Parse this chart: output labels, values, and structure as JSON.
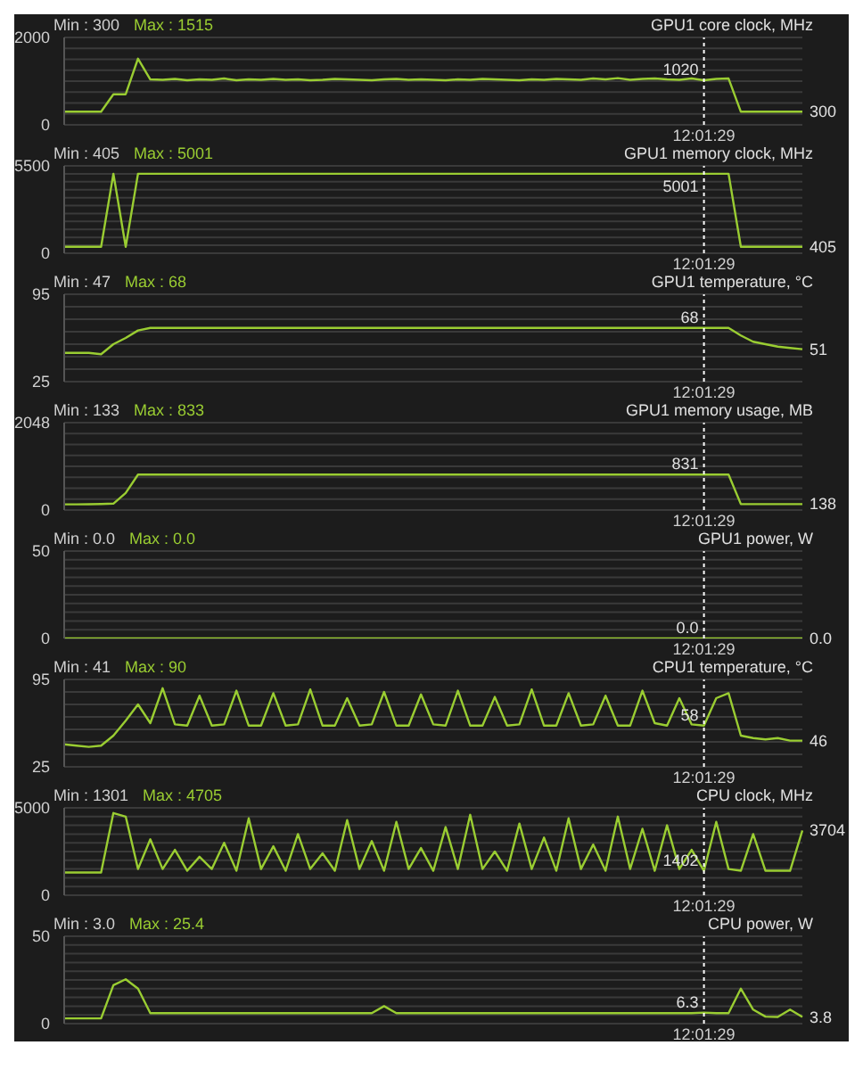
{
  "chart_data": [
    {
      "type": "line",
      "title": "GPU1 core clock, MHz",
      "categories": [
        null,
        null,
        null,
        null,
        null,
        null,
        null,
        null,
        null,
        null,
        null,
        null,
        null,
        null,
        null,
        null,
        null,
        null,
        null,
        null,
        null,
        null,
        null,
        null,
        null,
        null,
        null,
        null,
        null,
        null,
        null,
        null,
        null,
        null,
        null,
        null,
        null,
        null,
        null,
        null,
        null,
        null,
        null,
        null,
        null,
        null,
        null,
        null,
        null,
        null,
        null,
        null,
        null,
        null,
        null,
        null,
        null,
        null,
        null,
        null,
        null
      ],
      "series": [
        {
          "color": "#9acd32",
          "values": [
            300,
            300,
            300,
            300,
            700,
            700,
            1515,
            1040,
            1030,
            1050,
            1020,
            1040,
            1030,
            1060,
            1020,
            1040,
            1030,
            1050,
            1030,
            1040,
            1020,
            1030,
            1050,
            1040,
            1030,
            1020,
            1040,
            1050,
            1030,
            1040,
            1030,
            1020,
            1040,
            1030,
            1050,
            1040,
            1030,
            1020,
            1040,
            1030,
            1050,
            1040,
            1030,
            1060,
            1040,
            1070,
            1030,
            1050,
            1060,
            1040,
            1030,
            1060,
            1020,
            1050,
            1060,
            300,
            300,
            300,
            300,
            300,
            300
          ]
        }
      ],
      "ylim": [
        0,
        2000
      ],
      "yticks": [
        0,
        {
          "value": 250,
          "label": null
        },
        {
          "value": 500,
          "label": null
        },
        {
          "value": 750,
          "label": null
        },
        {
          "value": 1000,
          "label": null
        },
        {
          "value": 1250,
          "label": null
        },
        {
          "value": 1500,
          "label": null
        },
        {
          "value": 1750,
          "label": null
        },
        2000
      ],
      "grid": "y",
      "annotations": [
        "Min : 300",
        "Max : 1515",
        "1020",
        "300",
        "12:01:29"
      ]
    },
    {
      "type": "line",
      "title": "GPU1 memory clock, MHz",
      "categories": [
        null,
        null,
        null,
        null,
        null,
        null,
        null,
        null,
        null,
        null,
        null,
        null,
        null,
        null,
        null,
        null,
        null,
        null,
        null,
        null,
        null,
        null,
        null,
        null,
        null,
        null,
        null,
        null,
        null,
        null,
        null,
        null,
        null,
        null,
        null,
        null,
        null,
        null,
        null,
        null,
        null,
        null,
        null,
        null,
        null,
        null,
        null,
        null,
        null,
        null,
        null,
        null,
        null,
        null,
        null,
        null,
        null,
        null,
        null,
        null,
        null
      ],
      "series": [
        {
          "color": "#9acd32",
          "values": [
            405,
            405,
            405,
            405,
            5001,
            405,
            5001,
            5001,
            5001,
            5001,
            5001,
            5001,
            5001,
            5001,
            5001,
            5001,
            5001,
            5001,
            5001,
            5001,
            5001,
            5001,
            5001,
            5001,
            5001,
            5001,
            5001,
            5001,
            5001,
            5001,
            5001,
            5001,
            5001,
            5001,
            5001,
            5001,
            5001,
            5001,
            5001,
            5001,
            5001,
            5001,
            5001,
            5001,
            5001,
            5001,
            5001,
            5001,
            5001,
            5001,
            5001,
            5001,
            5001,
            5001,
            5001,
            405,
            405,
            405,
            405,
            405,
            405
          ]
        }
      ],
      "ylim": [
        0,
        5500
      ],
      "yticks": [
        0,
        {
          "value": 500,
          "label": null
        },
        {
          "value": 1000,
          "label": null
        },
        {
          "value": 1500,
          "label": null
        },
        {
          "value": 2000,
          "label": null
        },
        {
          "value": 2500,
          "label": null
        },
        {
          "value": 3000,
          "label": null
        },
        {
          "value": 3500,
          "label": null
        },
        {
          "value": 4000,
          "label": null
        },
        {
          "value": 4500,
          "label": null
        },
        {
          "value": 5000,
          "label": null
        },
        5500
      ],
      "grid": "y",
      "annotations": [
        "Min : 405",
        "Max : 5001",
        "5001",
        "405",
        "12:01:29"
      ]
    },
    {
      "type": "line",
      "title": "GPU1 temperature, °C",
      "categories": [
        null,
        null,
        null,
        null,
        null,
        null,
        null,
        null,
        null,
        null,
        null,
        null,
        null,
        null,
        null,
        null,
        null,
        null,
        null,
        null,
        null,
        null,
        null,
        null,
        null,
        null,
        null,
        null,
        null,
        null,
        null,
        null,
        null,
        null,
        null,
        null,
        null,
        null,
        null,
        null,
        null,
        null,
        null,
        null,
        null,
        null,
        null,
        null,
        null,
        null,
        null,
        null,
        null,
        null,
        null,
        null,
        null,
        null,
        null,
        null,
        null
      ],
      "series": [
        {
          "color": "#9acd32",
          "values": [
            48,
            48,
            48,
            47,
            55,
            60,
            66,
            68,
            68,
            68,
            68,
            68,
            68,
            68,
            68,
            68,
            68,
            68,
            68,
            68,
            68,
            68,
            68,
            68,
            68,
            68,
            68,
            68,
            68,
            68,
            68,
            68,
            68,
            68,
            68,
            68,
            68,
            68,
            68,
            68,
            68,
            68,
            68,
            68,
            68,
            68,
            68,
            68,
            68,
            68,
            68,
            68,
            68,
            68,
            68,
            62,
            57,
            55,
            53,
            52,
            51
          ]
        }
      ],
      "ylim": [
        25,
        95
      ],
      "yticks": [
        25,
        {
          "value": 35,
          "label": null
        },
        {
          "value": 45,
          "label": null
        },
        {
          "value": 55,
          "label": null
        },
        {
          "value": 65,
          "label": null
        },
        {
          "value": 75,
          "label": null
        },
        {
          "value": 85,
          "label": null
        },
        95
      ],
      "grid": "y",
      "annotations": [
        "Min : 47",
        "Max : 68",
        "68",
        "51",
        "12:01:29"
      ]
    },
    {
      "type": "line",
      "title": "GPU1 memory usage, MB",
      "categories": [
        null,
        null,
        null,
        null,
        null,
        null,
        null,
        null,
        null,
        null,
        null,
        null,
        null,
        null,
        null,
        null,
        null,
        null,
        null,
        null,
        null,
        null,
        null,
        null,
        null,
        null,
        null,
        null,
        null,
        null,
        null,
        null,
        null,
        null,
        null,
        null,
        null,
        null,
        null,
        null,
        null,
        null,
        null,
        null,
        null,
        null,
        null,
        null,
        null,
        null,
        null,
        null,
        null,
        null,
        null,
        null,
        null,
        null,
        null,
        null,
        null
      ],
      "series": [
        {
          "color": "#9acd32",
          "values": [
            133,
            133,
            135,
            140,
            150,
            400,
            831,
            831,
            831,
            831,
            831,
            831,
            831,
            831,
            831,
            831,
            831,
            831,
            831,
            831,
            831,
            831,
            831,
            831,
            831,
            831,
            831,
            831,
            831,
            831,
            831,
            831,
            831,
            831,
            831,
            831,
            831,
            831,
            831,
            831,
            831,
            831,
            831,
            831,
            831,
            831,
            831,
            831,
            831,
            831,
            831,
            831,
            831,
            831,
            831,
            138,
            138,
            138,
            138,
            138,
            138
          ]
        }
      ],
      "ylim": [
        0,
        2048
      ],
      "yticks": [
        0,
        {
          "value": 256,
          "label": null
        },
        {
          "value": 512,
          "label": null
        },
        {
          "value": 768,
          "label": null
        },
        {
          "value": 1024,
          "label": null
        },
        {
          "value": 1280,
          "label": null
        },
        {
          "value": 1536,
          "label": null
        },
        {
          "value": 1792,
          "label": null
        },
        2048
      ],
      "grid": "y",
      "annotations": [
        "Min : 133",
        "Max : 833",
        "831",
        "138",
        "12:01:29"
      ]
    },
    {
      "type": "line",
      "title": "GPU1 power, W",
      "categories": [
        null,
        null,
        null,
        null,
        null,
        null,
        null,
        null,
        null,
        null,
        null,
        null,
        null,
        null,
        null,
        null,
        null,
        null,
        null,
        null,
        null,
        null,
        null,
        null,
        null,
        null,
        null,
        null,
        null,
        null,
        null,
        null,
        null,
        null,
        null,
        null,
        null,
        null,
        null,
        null,
        null,
        null,
        null,
        null,
        null,
        null,
        null,
        null,
        null,
        null,
        null,
        null,
        null,
        null,
        null,
        null,
        null,
        null,
        null,
        null,
        null
      ],
      "series": [
        {
          "color": "#9acd32",
          "values": [
            0,
            0,
            0,
            0,
            0,
            0,
            0,
            0,
            0,
            0,
            0,
            0,
            0,
            0,
            0,
            0,
            0,
            0,
            0,
            0,
            0,
            0,
            0,
            0,
            0,
            0,
            0,
            0,
            0,
            0,
            0,
            0,
            0,
            0,
            0,
            0,
            0,
            0,
            0,
            0,
            0,
            0,
            0,
            0,
            0,
            0,
            0,
            0,
            0,
            0,
            0,
            0,
            0,
            0,
            0,
            0,
            0,
            0,
            0,
            0,
            0
          ]
        }
      ],
      "ylim": [
        0,
        50
      ],
      "yticks": [
        0,
        {
          "value": 5,
          "label": null
        },
        {
          "value": 10,
          "label": null
        },
        {
          "value": 15,
          "label": null
        },
        {
          "value": 20,
          "label": null
        },
        {
          "value": 25,
          "label": null
        },
        {
          "value": 30,
          "label": null
        },
        {
          "value": 35,
          "label": null
        },
        {
          "value": 40,
          "label": null
        },
        {
          "value": 45,
          "label": null
        },
        50
      ],
      "grid": "y",
      "annotations": [
        "Min : 0.0",
        "Max : 0.0",
        "0.0",
        "0.0",
        "12:01:29"
      ]
    },
    {
      "type": "line",
      "title": "CPU1 temperature, °C",
      "categories": [
        null,
        null,
        null,
        null,
        null,
        null,
        null,
        null,
        null,
        null,
        null,
        null,
        null,
        null,
        null,
        null,
        null,
        null,
        null,
        null,
        null,
        null,
        null,
        null,
        null,
        null,
        null,
        null,
        null,
        null,
        null,
        null,
        null,
        null,
        null,
        null,
        null,
        null,
        null,
        null,
        null,
        null,
        null,
        null,
        null,
        null,
        null,
        null,
        null,
        null,
        null,
        null,
        null,
        null,
        null,
        null,
        null,
        null,
        null,
        null,
        null
      ],
      "series": [
        {
          "color": "#9acd32",
          "values": [
            43,
            42,
            41,
            42,
            50,
            62,
            75,
            60,
            88,
            59,
            58,
            82,
            58,
            59,
            86,
            58,
            58,
            84,
            58,
            59,
            87,
            58,
            58,
            80,
            58,
            59,
            85,
            58,
            58,
            83,
            59,
            58,
            86,
            58,
            58,
            81,
            58,
            59,
            87,
            58,
            58,
            84,
            58,
            59,
            82,
            58,
            58,
            86,
            60,
            58,
            80,
            59,
            58,
            80,
            84,
            50,
            48,
            47,
            48,
            46,
            46
          ]
        }
      ],
      "ylim": [
        25,
        95
      ],
      "yticks": [
        25,
        {
          "value": 35,
          "label": null
        },
        {
          "value": 45,
          "label": null
        },
        {
          "value": 55,
          "label": null
        },
        {
          "value": 65,
          "label": null
        },
        {
          "value": 75,
          "label": null
        },
        {
          "value": 85,
          "label": null
        },
        95
      ],
      "grid": "y",
      "annotations": [
        "Min : 41",
        "Max : 90",
        "58",
        "46",
        "12:01:29"
      ]
    },
    {
      "type": "line",
      "title": "CPU clock, MHz",
      "categories": [
        null,
        null,
        null,
        null,
        null,
        null,
        null,
        null,
        null,
        null,
        null,
        null,
        null,
        null,
        null,
        null,
        null,
        null,
        null,
        null,
        null,
        null,
        null,
        null,
        null,
        null,
        null,
        null,
        null,
        null,
        null,
        null,
        null,
        null,
        null,
        null,
        null,
        null,
        null,
        null,
        null,
        null,
        null,
        null,
        null,
        null,
        null,
        null,
        null,
        null,
        null,
        null,
        null,
        null,
        null,
        null,
        null,
        null,
        null,
        null,
        null
      ],
      "series": [
        {
          "color": "#9acd32",
          "values": [
            1301,
            1301,
            1301,
            1301,
            4705,
            4500,
            1500,
            3200,
            1500,
            2600,
            1400,
            2200,
            1500,
            3000,
            1400,
            4400,
            1500,
            2800,
            1400,
            3500,
            1500,
            2400,
            1400,
            4300,
            1500,
            3100,
            1400,
            4200,
            1500,
            2700,
            1400,
            3900,
            1500,
            4600,
            1500,
            2500,
            1400,
            4100,
            1500,
            3300,
            1400,
            4400,
            1500,
            2900,
            1400,
            4500,
            1500,
            3800,
            1400,
            4000,
            1500,
            2600,
            1402,
            4200,
            1500,
            1400,
            3500,
            1400,
            1400,
            1400,
            3704
          ]
        }
      ],
      "ylim": [
        0,
        5000
      ],
      "yticks": [
        0,
        {
          "value": 500,
          "label": null
        },
        {
          "value": 1000,
          "label": null
        },
        {
          "value": 1500,
          "label": null
        },
        {
          "value": 2000,
          "label": null
        },
        {
          "value": 2500,
          "label": null
        },
        {
          "value": 3000,
          "label": null
        },
        {
          "value": 3500,
          "label": null
        },
        {
          "value": 4000,
          "label": null
        },
        {
          "value": 4500,
          "label": null
        },
        5000
      ],
      "grid": "y",
      "annotations": [
        "Min : 1301",
        "Max : 4705",
        "1402",
        "3704",
        "12:01:29"
      ]
    },
    {
      "type": "line",
      "title": "CPU power, W",
      "categories": [
        null,
        null,
        null,
        null,
        null,
        null,
        null,
        null,
        null,
        null,
        null,
        null,
        null,
        null,
        null,
        null,
        null,
        null,
        null,
        null,
        null,
        null,
        null,
        null,
        null,
        null,
        null,
        null,
        null,
        null,
        null,
        null,
        null,
        null,
        null,
        null,
        null,
        null,
        null,
        null,
        null,
        null,
        null,
        null,
        null,
        null,
        null,
        null,
        null,
        null,
        null,
        null,
        null,
        null,
        null,
        null,
        null,
        null,
        null,
        null,
        null
      ],
      "series": [
        {
          "color": "#9acd32",
          "values": [
            3.0,
            3.0,
            3.0,
            3.0,
            22,
            25.4,
            20,
            6,
            6,
            6,
            6,
            6,
            6,
            6,
            6,
            6,
            6,
            6,
            6,
            6,
            6,
            6,
            6,
            6,
            6,
            6,
            10,
            6,
            6,
            6,
            6,
            6,
            6,
            6,
            6,
            6,
            6,
            6,
            6,
            6,
            6,
            6,
            6,
            6,
            6,
            6,
            6,
            6,
            6,
            6,
            6,
            6,
            6.3,
            6,
            6,
            20,
            8,
            4,
            3.8,
            8,
            3.8
          ]
        }
      ],
      "ylim": [
        0,
        50
      ],
      "yticks": [
        0,
        {
          "value": 5,
          "label": null
        },
        {
          "value": 10,
          "label": null
        },
        {
          "value": 15,
          "label": null
        },
        {
          "value": 20,
          "label": null
        },
        {
          "value": 25,
          "label": null
        },
        {
          "value": 30,
          "label": null
        },
        {
          "value": 35,
          "label": null
        },
        {
          "value": 40,
          "label": null
        },
        {
          "value": 45,
          "label": null
        },
        50
      ],
      "grid": "y",
      "annotations": [
        "Min : 3.0",
        "Max : 25.4",
        "6.3",
        "3.8",
        "12:01:29"
      ]
    }
  ]
}
